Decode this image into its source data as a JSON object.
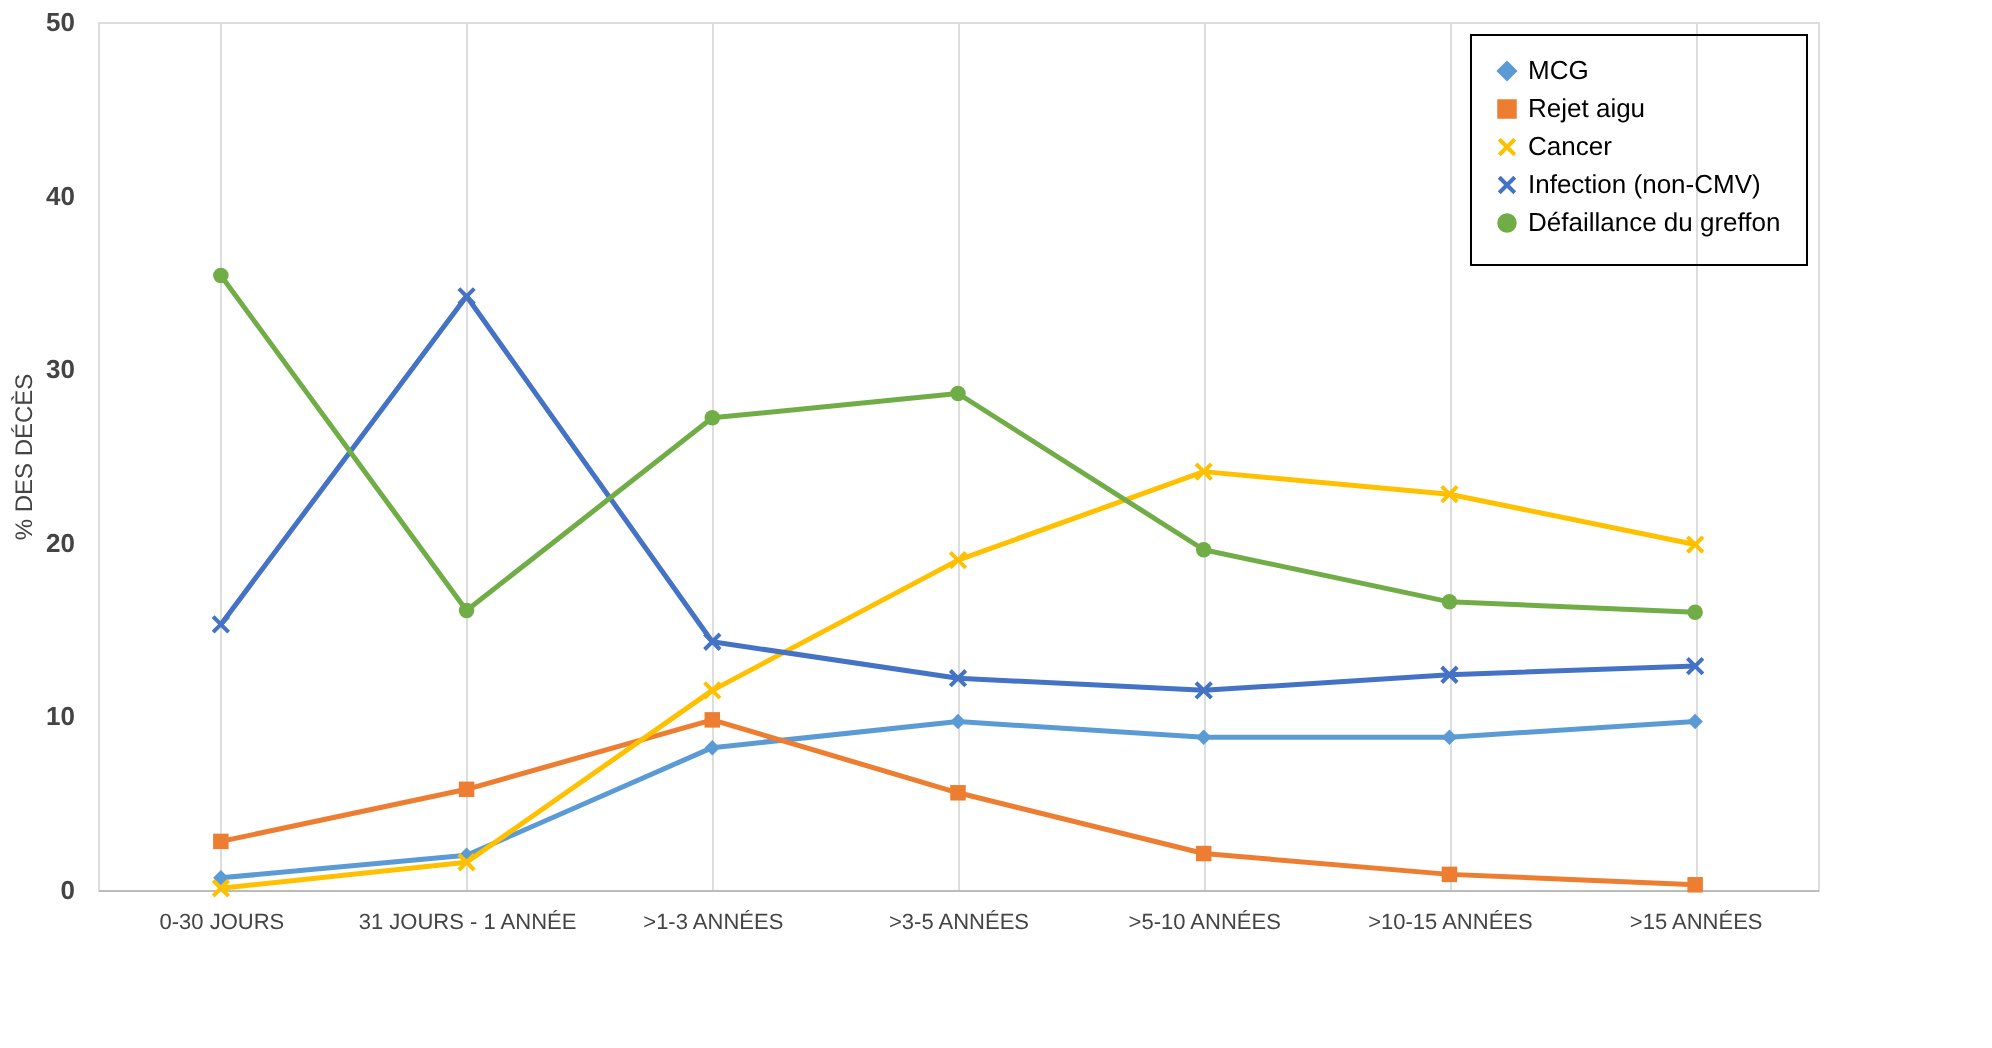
{
  "chart_data": {
    "type": "line",
    "ylabel": "% DES DÉCÈS",
    "categories": [
      "0-30 JOURS",
      "31 JOURS - 1 ANNÉE",
      ">1-3 ANNÉES",
      ">3-5 ANNÉES",
      ">5-10 ANNÉES",
      ">10-15 ANNÉES",
      ">15 ANNÉES"
    ],
    "series": [
      {
        "name": "MCG",
        "color": "#5b9bd5",
        "marker": "diamond",
        "values": [
          0.7,
          2.0,
          8.2,
          9.7,
          8.8,
          8.8,
          9.7
        ]
      },
      {
        "name": "Rejet aigu",
        "color": "#ed7d31",
        "marker": "square",
        "values": [
          2.8,
          5.8,
          9.8,
          5.6,
          2.1,
          0.9,
          0.3
        ]
      },
      {
        "name": "Cancer",
        "color": "#ffc000",
        "marker": "cross",
        "values": [
          0.1,
          1.6,
          11.5,
          19.0,
          24.1,
          22.8,
          19.9
        ]
      },
      {
        "name": "Infection (non-CMV)",
        "color": "#4472c4",
        "marker": "cross",
        "values": [
          15.3,
          34.2,
          14.3,
          12.2,
          11.5,
          12.4,
          12.9
        ]
      },
      {
        "name": "Défaillance du greffon",
        "color": "#70ad47",
        "marker": "circle",
        "values": [
          35.4,
          16.1,
          27.2,
          28.6,
          19.6,
          16.6,
          16.0
        ]
      }
    ],
    "ylim": [
      0,
      50
    ],
    "yticks": [
      0,
      10,
      20,
      30,
      40,
      50
    ],
    "grid": "x",
    "legend": "top right",
    "line_style": "solid"
  }
}
